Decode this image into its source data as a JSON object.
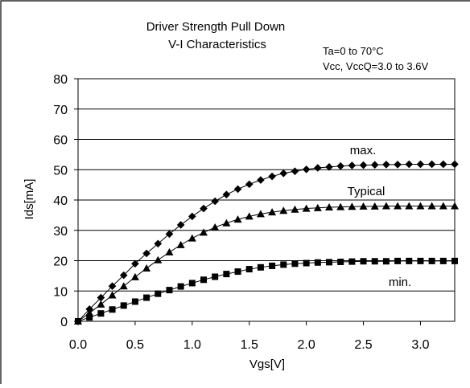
{
  "chart_data": {
    "type": "line",
    "title_line1": "Driver Strength Pull Down",
    "title_line2": "V-I Characteristics",
    "condition_line1": "Ta=0 to 70°C",
    "condition_line2": "Vcc, VccQ=3.0 to 3.6V",
    "xlabel": "Vgs[V]",
    "ylabel": "Ids[mA]",
    "xlim": [
      0,
      3.3
    ],
    "ylim": [
      0,
      80
    ],
    "x_ticks": [
      "0.0",
      "0.5",
      "1.0",
      "1.5",
      "2.0",
      "2.5",
      "3.0"
    ],
    "y_ticks": [
      "0",
      "10",
      "20",
      "30",
      "40",
      "50",
      "60",
      "70",
      "80"
    ],
    "grid": "horizontal",
    "x": [
      0.0,
      0.1,
      0.2,
      0.3,
      0.4,
      0.5,
      0.6,
      0.7,
      0.8,
      0.9,
      1.0,
      1.1,
      1.2,
      1.3,
      1.4,
      1.5,
      1.6,
      1.7,
      1.8,
      1.9,
      2.0,
      2.1,
      2.2,
      2.3,
      2.4,
      2.5,
      2.6,
      2.7,
      2.8,
      2.9,
      3.0,
      3.1,
      3.2,
      3.3
    ],
    "series": [
      {
        "name": "max.",
        "marker": "diamond",
        "values": [
          0.0,
          4.0,
          7.8,
          11.6,
          15.2,
          19.0,
          22.4,
          25.6,
          28.8,
          31.8,
          34.6,
          37.2,
          39.6,
          41.8,
          43.6,
          45.2,
          46.6,
          47.8,
          48.8,
          49.5,
          50.1,
          50.6,
          50.9,
          51.2,
          51.4,
          51.5,
          51.6,
          51.7,
          51.7,
          51.8,
          51.8,
          51.8,
          51.8,
          51.8
        ]
      },
      {
        "name": "Typical",
        "marker": "triangle",
        "values": [
          0.0,
          2.7,
          5.6,
          8.6,
          11.6,
          14.6,
          17.5,
          20.2,
          22.8,
          25.2,
          27.4,
          29.3,
          31.0,
          32.4,
          33.6,
          34.6,
          35.4,
          36.0,
          36.5,
          36.9,
          37.2,
          37.4,
          37.6,
          37.7,
          37.8,
          37.9,
          37.9,
          38.0,
          38.0,
          38.0,
          38.0,
          38.0,
          38.0,
          38.0
        ]
      },
      {
        "name": "min.",
        "marker": "square",
        "values": [
          0.0,
          1.3,
          2.6,
          3.9,
          5.2,
          6.5,
          7.8,
          9.1,
          10.3,
          11.5,
          12.6,
          13.7,
          14.7,
          15.6,
          16.4,
          17.2,
          17.8,
          18.3,
          18.7,
          19.0,
          19.2,
          19.4,
          19.5,
          19.6,
          19.7,
          19.8,
          19.8,
          19.8,
          19.9,
          19.9,
          19.9,
          19.9,
          19.9,
          19.9
        ]
      }
    ]
  }
}
